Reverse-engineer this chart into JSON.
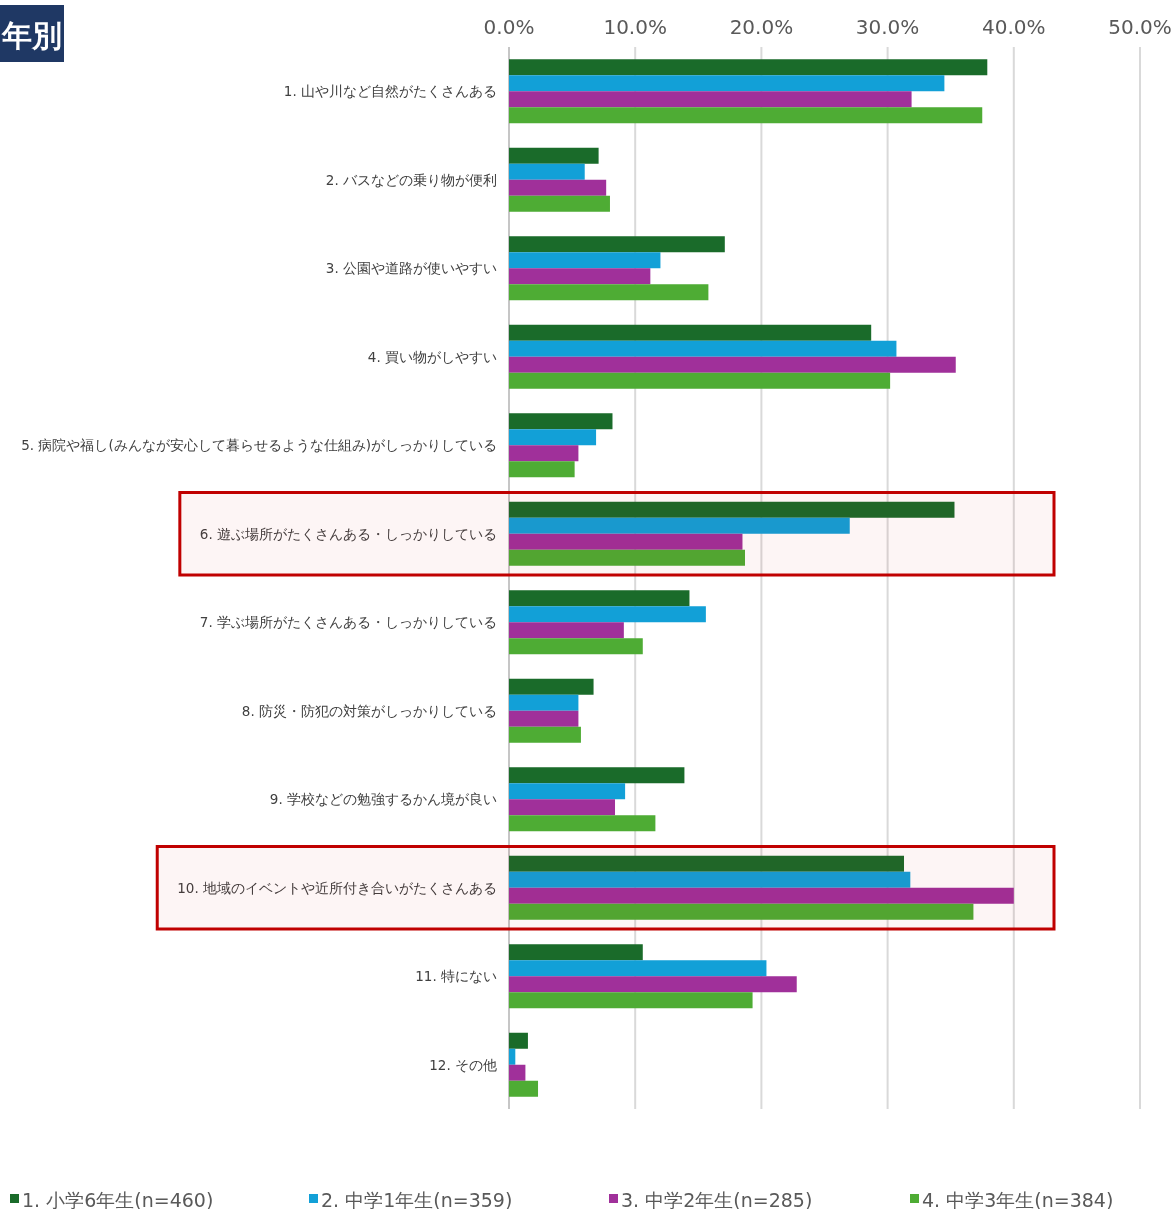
{
  "chart_data": {
    "type": "bar",
    "orientation": "horizontal",
    "title": "年別",
    "categories": [
      "1. 山や川など自然がたくさんある",
      "2. バスなどの乗り物が便利",
      "3. 公園や道路が使いやすい",
      "4. 買い物がしやすい",
      "5. 病院や福し(みんなが安心して暮らせるような仕組み)がしっかりしている",
      "6. 遊ぶ場所がたくさんある・しっかりしている",
      "7. 学ぶ場所がたくさんある・しっかりしている",
      "8. 防災・防犯の対策がしっかりしている",
      "9. 学校などの勉強するかん境が良い",
      "10. 地域のイベントや近所付き合いがたくさんある",
      "11. 特にない",
      "12. その他"
    ],
    "series": [
      {
        "name": "1. 小学6年生(n=460)",
        "color": "#1a6b2a",
        "values": [
          37.9,
          7.1,
          17.1,
          28.7,
          8.2,
          35.3,
          14.3,
          6.7,
          13.9,
          31.3,
          10.6,
          1.5
        ]
      },
      {
        "name": "2. 中学1年生(n=359)",
        "color": "#12a0d7",
        "values": [
          34.5,
          6.0,
          12.0,
          30.7,
          6.9,
          27.0,
          15.6,
          5.5,
          9.2,
          31.8,
          20.4,
          0.5
        ]
      },
      {
        "name": "3. 中学2年生(n=285)",
        "color": "#a0309a",
        "values": [
          31.9,
          7.7,
          11.2,
          35.4,
          5.5,
          18.5,
          9.1,
          5.5,
          8.4,
          40.0,
          22.8,
          1.3
        ]
      },
      {
        "name": "4. 中学3年生(n=384)",
        "color": "#4eac34",
        "values": [
          37.5,
          8.0,
          15.8,
          30.2,
          5.2,
          18.7,
          10.6,
          5.7,
          11.6,
          36.8,
          19.3,
          2.3
        ]
      }
    ],
    "xlim": [
      0,
      50
    ],
    "xticks": [
      {
        "value": 0,
        "label": "0.0%"
      },
      {
        "value": 10,
        "label": "10.0%"
      },
      {
        "value": 20,
        "label": "20.0%"
      },
      {
        "value": 30,
        "label": "30.0%"
      },
      {
        "value": 40,
        "label": "40.0%"
      },
      {
        "value": 50,
        "label": "50.0%"
      }
    ],
    "grid": "x",
    "legend": "bottom",
    "bands": [
      {
        "axis": "y",
        "from": "6. 遊ぶ場所がたくさんある・しっかりしている",
        "to": "6. 遊ぶ場所がたくさんある・しっかりしている",
        "color": "#c00000"
      },
      {
        "axis": "y",
        "from": "10. 地域のイベントや近所付き合いがたくさんある",
        "to": "10. 地域のイベントや近所付き合いがたくさんある",
        "color": "#c00000"
      }
    ]
  }
}
